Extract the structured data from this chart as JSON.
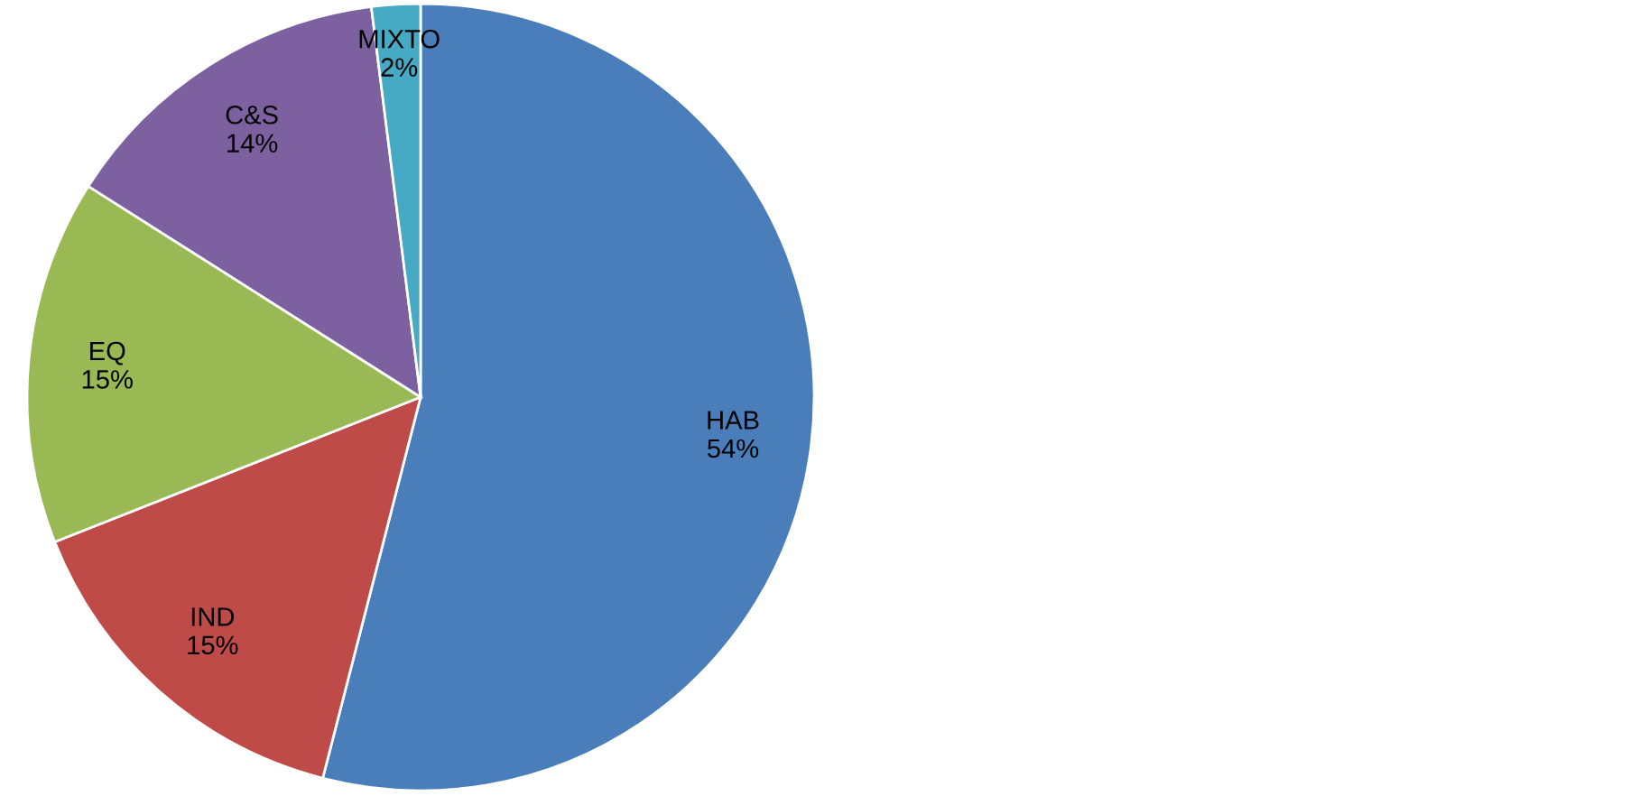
{
  "chart_data": {
    "type": "pie",
    "categories": [
      "HAB",
      "IND",
      "EQ",
      "C&S",
      "MIXTO"
    ],
    "values": [
      54,
      15,
      15,
      14,
      2
    ],
    "value_labels": [
      "54%",
      "15%",
      "15%",
      "14%",
      "2%"
    ],
    "colors": [
      "#4a7ebb",
      "#be4b48",
      "#98b954",
      "#7d60a0",
      "#46aac5"
    ],
    "legend": false
  }
}
